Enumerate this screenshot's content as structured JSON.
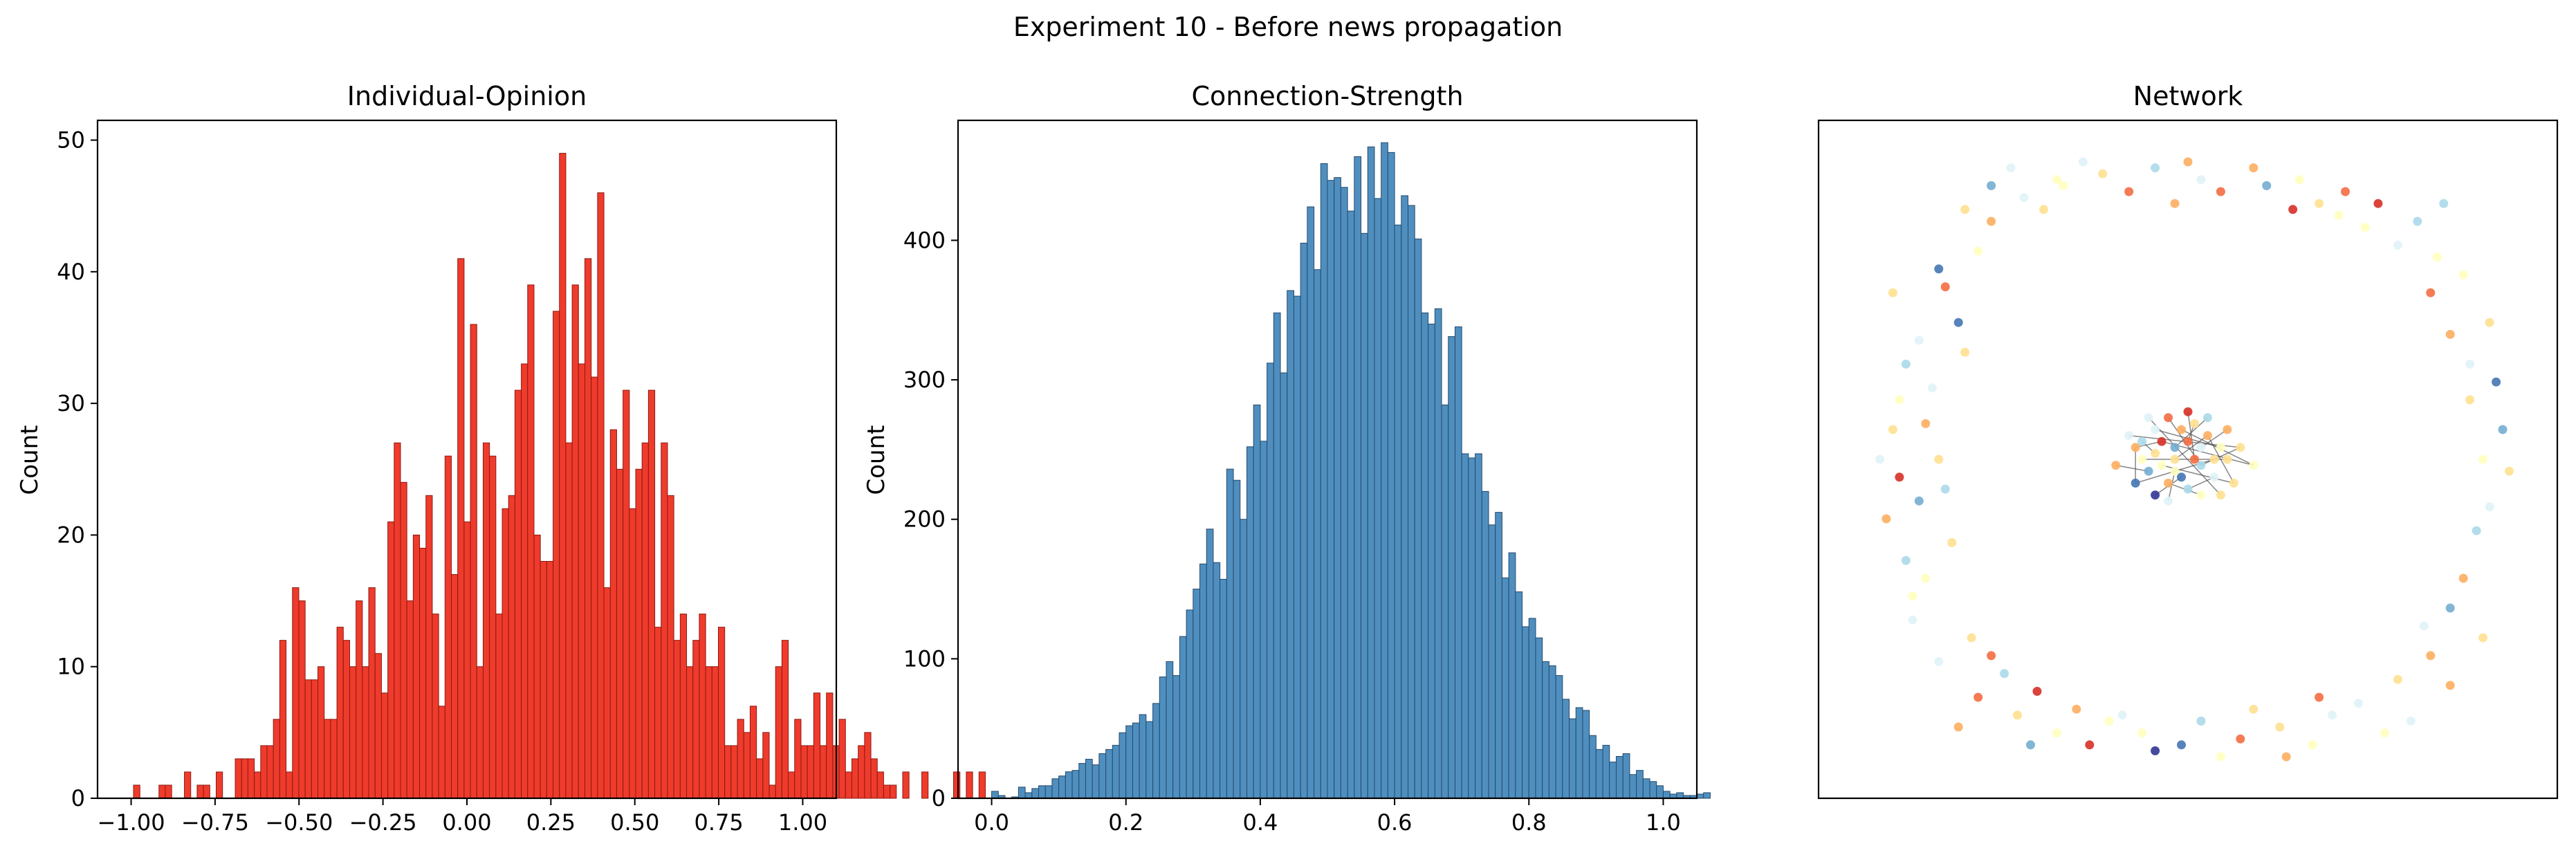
{
  "figure": {
    "title": "Experiment 10 - Before news propagation"
  },
  "colors": {
    "opinion_bar": "#ef3b2c",
    "opinion_edge": "#8b1a12",
    "strength_bar": "#4f8fbf",
    "strength_edge": "#27496a",
    "node_palette": [
      "#d73027",
      "#f46d43",
      "#fdae61",
      "#fee090",
      "#ffffbf",
      "#e0f3f8",
      "#abd9e9",
      "#74add1",
      "#4575b4",
      "#313695"
    ]
  },
  "chart_data": [
    {
      "type": "bar",
      "title": "Individual-Opinion",
      "xlabel": "",
      "ylabel": "Count",
      "xlim": [
        -1.1,
        1.1
      ],
      "ylim": [
        0,
        51.5
      ],
      "xticks": [
        -1.0,
        -0.75,
        -0.5,
        -0.25,
        0.0,
        0.25,
        0.5,
        0.75,
        1.0
      ],
      "xtick_labels": [
        "−1.00",
        "−0.75",
        "−0.50",
        "−0.25",
        "0.00",
        "0.25",
        "0.50",
        "0.75",
        "1.00"
      ],
      "yticks": [
        0,
        10,
        20,
        30,
        40,
        50
      ],
      "ytick_labels": [
        "0",
        "10",
        "20",
        "30",
        "40",
        "50"
      ],
      "bin_start": -0.9928,
      "bin_width": 0.01893,
      "values": [
        1,
        0,
        0,
        0,
        1,
        1,
        0,
        0,
        2,
        0,
        1,
        1,
        0,
        2,
        0,
        0,
        3,
        3,
        3,
        2,
        4,
        4,
        6,
        12,
        2,
        16,
        15,
        9,
        9,
        10,
        6,
        6,
        13,
        12,
        10,
        15,
        10,
        16,
        11,
        8,
        21,
        27,
        24,
        15,
        20,
        19,
        23,
        14,
        7,
        26,
        17,
        41,
        21,
        36,
        10,
        27,
        26,
        14,
        22,
        23,
        31,
        33,
        39,
        20,
        18,
        18,
        37,
        49,
        27,
        39,
        33,
        41,
        32,
        46,
        16,
        28,
        25,
        31,
        22,
        25,
        27,
        31,
        13,
        27,
        23,
        12,
        14,
        10,
        12,
        14,
        10,
        10,
        13,
        4,
        4,
        6,
        5,
        7,
        3,
        5,
        1,
        10,
        12,
        2,
        6,
        4,
        4,
        8,
        4,
        8,
        4,
        6,
        2,
        3,
        4,
        5,
        3,
        2,
        1,
        1,
        0,
        2,
        0,
        0,
        2,
        0,
        0,
        0,
        0,
        2,
        0,
        2,
        0,
        2
      ]
    },
    {
      "type": "bar",
      "title": "Connection-Strength",
      "xlabel": "",
      "ylabel": "Count",
      "xlim": [
        -0.05,
        1.05
      ],
      "ylim": [
        0,
        486
      ],
      "xticks": [
        0.0,
        0.2,
        0.4,
        0.6,
        0.8,
        1.0
      ],
      "xtick_labels": [
        "0.0",
        "0.2",
        "0.4",
        "0.6",
        "0.8",
        "1.0"
      ],
      "yticks": [
        0,
        100,
        200,
        300,
        400
      ],
      "ytick_labels": [
        "0",
        "100",
        "200",
        "300",
        "400"
      ],
      "bin_start": 0.0,
      "bin_width": 0.01,
      "values": [
        5,
        2,
        0,
        1,
        8,
        4,
        7,
        9,
        9,
        14,
        16,
        19,
        20,
        25,
        28,
        24,
        32,
        35,
        38,
        47,
        52,
        54,
        60,
        55,
        68,
        87,
        98,
        88,
        116,
        135,
        150,
        168,
        193,
        169,
        157,
        236,
        228,
        200,
        252,
        282,
        256,
        312,
        348,
        305,
        364,
        360,
        398,
        424,
        379,
        455,
        443,
        445,
        438,
        421,
        460,
        405,
        467,
        430,
        470,
        463,
        411,
        432,
        425,
        401,
        348,
        340,
        351,
        282,
        331,
        338,
        247,
        244,
        247,
        220,
        196,
        205,
        158,
        176,
        148,
        123,
        129,
        115,
        98,
        95,
        88,
        71,
        57,
        65,
        63,
        45,
        35,
        38,
        26,
        30,
        32,
        17,
        20,
        14,
        12,
        9,
        5,
        3,
        4,
        2,
        2,
        3,
        4
      ]
    },
    {
      "type": "scatter",
      "title": "Network",
      "xlabel": "",
      "ylabel": "",
      "grid": false,
      "nodes": [
        [
          0.08,
          0.23,
          5
        ],
        [
          0.12,
          0.5,
          3
        ],
        [
          0.15,
          0.73,
          8
        ],
        [
          0.2,
          0.9,
          2
        ],
        [
          0.3,
          0.97,
          4
        ],
        [
          0.45,
          0.99,
          6
        ],
        [
          0.55,
          0.95,
          1
        ],
        [
          0.7,
          0.93,
          3
        ],
        [
          0.82,
          0.86,
          5
        ],
        [
          0.9,
          0.71,
          2
        ],
        [
          0.95,
          0.5,
          4
        ],
        [
          0.9,
          0.25,
          7
        ],
        [
          0.82,
          0.13,
          3
        ],
        [
          0.72,
          0.07,
          5
        ],
        [
          0.58,
          0.03,
          1
        ],
        [
          0.43,
          0.04,
          4
        ],
        [
          0.33,
          0.08,
          2
        ],
        [
          0.22,
          0.14,
          6
        ],
        [
          0.14,
          0.36,
          3
        ],
        [
          0.11,
          0.62,
          5
        ],
        [
          0.1,
          0.3,
          4
        ],
        [
          0.13,
          0.79,
          1
        ],
        [
          0.25,
          0.94,
          5
        ],
        [
          0.37,
          0.98,
          3
        ],
        [
          0.5,
          1.0,
          2
        ],
        [
          0.62,
          0.96,
          7
        ],
        [
          0.77,
          0.89,
          4
        ],
        [
          0.87,
          0.78,
          1
        ],
        [
          0.93,
          0.6,
          3
        ],
        [
          0.94,
          0.38,
          6
        ],
        [
          0.87,
          0.17,
          2
        ],
        [
          0.76,
          0.09,
          5
        ],
        [
          0.64,
          0.05,
          3
        ],
        [
          0.49,
          0.02,
          8
        ],
        [
          0.38,
          0.06,
          4
        ],
        [
          0.27,
          0.11,
          0
        ],
        [
          0.17,
          0.2,
          3
        ],
        [
          0.09,
          0.43,
          7
        ],
        [
          0.1,
          0.56,
          2
        ],
        [
          0.18,
          0.85,
          4
        ],
        [
          0.06,
          0.47,
          0
        ],
        [
          0.07,
          0.66,
          6
        ],
        [
          0.16,
          0.92,
          3
        ],
        [
          0.34,
          1.0,
          5
        ],
        [
          0.6,
          0.99,
          2
        ],
        [
          0.79,
          0.93,
          0
        ],
        [
          0.92,
          0.81,
          4
        ],
        [
          0.97,
          0.63,
          8
        ],
        [
          0.95,
          0.2,
          3
        ],
        [
          0.84,
          0.06,
          5
        ],
        [
          0.65,
          0.0,
          2
        ],
        [
          0.45,
          0.01,
          9
        ],
        [
          0.3,
          0.04,
          4
        ],
        [
          0.18,
          0.1,
          1
        ],
        [
          0.07,
          0.33,
          6
        ],
        [
          0.05,
          0.55,
          3
        ],
        [
          0.09,
          0.7,
          5
        ],
        [
          0.2,
          0.96,
          7
        ],
        [
          0.41,
          0.95,
          1
        ],
        [
          0.67,
          0.97,
          4
        ],
        [
          0.85,
          0.9,
          6
        ],
        [
          0.96,
          0.73,
          3
        ],
        [
          0.96,
          0.42,
          5
        ],
        [
          0.9,
          0.12,
          2
        ],
        [
          0.69,
          0.02,
          4
        ],
        [
          0.52,
          0.06,
          6
        ],
        [
          0.35,
          0.02,
          0
        ],
        [
          0.24,
          0.07,
          3
        ],
        [
          0.12,
          0.16,
          5
        ],
        [
          0.04,
          0.4,
          2
        ],
        [
          0.06,
          0.6,
          4
        ],
        [
          0.12,
          0.82,
          8
        ],
        [
          0.28,
          0.92,
          3
        ],
        [
          0.52,
          0.97,
          5
        ],
        [
          0.74,
          0.95,
          1
        ],
        [
          0.88,
          0.84,
          4
        ],
        [
          0.98,
          0.55,
          7
        ],
        [
          0.92,
          0.3,
          2
        ],
        [
          0.8,
          0.04,
          4
        ],
        [
          0.6,
          0.08,
          3
        ],
        [
          0.4,
          0.07,
          5
        ],
        [
          0.2,
          0.17,
          1
        ],
        [
          0.08,
          0.27,
          4
        ],
        [
          0.13,
          0.45,
          6
        ],
        [
          0.05,
          0.78,
          3
        ],
        [
          0.23,
          0.99,
          5
        ],
        [
          0.48,
          0.93,
          2
        ],
        [
          0.73,
          0.91,
          4
        ],
        [
          0.89,
          0.93,
          6
        ],
        [
          0.99,
          0.48,
          3
        ],
        [
          0.86,
          0.22,
          5
        ],
        [
          0.7,
          0.1,
          1
        ],
        [
          0.55,
          0.0,
          4
        ],
        [
          0.26,
          0.02,
          7
        ],
        [
          0.15,
          0.05,
          2
        ],
        [
          0.03,
          0.5,
          5
        ],
        [
          0.16,
          0.68,
          3
        ],
        [
          0.31,
          0.96,
          4
        ],
        [
          0.66,
          0.92,
          0
        ],
        [
          0.93,
          0.66,
          5
        ],
        [
          0.42,
          0.52,
          2
        ],
        [
          0.45,
          0.55,
          5
        ],
        [
          0.48,
          0.5,
          3
        ],
        [
          0.5,
          0.53,
          1
        ],
        [
          0.52,
          0.49,
          6
        ],
        [
          0.55,
          0.52,
          4
        ],
        [
          0.47,
          0.46,
          2
        ],
        [
          0.44,
          0.48,
          7
        ],
        [
          0.51,
          0.56,
          3
        ],
        [
          0.54,
          0.47,
          5
        ],
        [
          0.46,
          0.53,
          0
        ],
        [
          0.49,
          0.47,
          8
        ],
        [
          0.53,
          0.54,
          2
        ],
        [
          0.43,
          0.5,
          4
        ],
        [
          0.56,
          0.5,
          3
        ],
        [
          0.5,
          0.45,
          6
        ],
        [
          0.47,
          0.57,
          1
        ],
        [
          0.41,
          0.54,
          5
        ],
        [
          0.58,
          0.52,
          3
        ],
        [
          0.45,
          0.44,
          9
        ],
        [
          0.52,
          0.44,
          4
        ],
        [
          0.39,
          0.49,
          2
        ],
        [
          0.48,
          0.52,
          7
        ],
        [
          0.57,
          0.46,
          3
        ],
        [
          0.44,
          0.57,
          5
        ],
        [
          0.51,
          0.5,
          1
        ],
        [
          0.46,
          0.49,
          4
        ],
        [
          0.53,
          0.57,
          6
        ],
        [
          0.49,
          0.55,
          2
        ],
        [
          0.55,
          0.44,
          3
        ],
        [
          0.42,
          0.46,
          8
        ],
        [
          0.6,
          0.49,
          4
        ],
        [
          0.47,
          0.43,
          5
        ],
        [
          0.5,
          0.58,
          0
        ],
        [
          0.54,
          0.5,
          3
        ],
        [
          0.43,
          0.53,
          6
        ],
        [
          0.56,
          0.55,
          2
        ],
        [
          0.48,
          0.48,
          4
        ],
        [
          0.45,
          0.51,
          3
        ],
        [
          0.52,
          0.52,
          5
        ]
      ],
      "edges": [
        [
          100,
          110
        ],
        [
          101,
          105
        ],
        [
          102,
          112
        ],
        [
          103,
          108
        ],
        [
          104,
          116
        ],
        [
          106,
          120
        ],
        [
          107,
          121
        ],
        [
          109,
          115
        ],
        [
          111,
          119
        ],
        [
          113,
          114
        ],
        [
          117,
          118
        ],
        [
          122,
          127
        ],
        [
          123,
          126
        ],
        [
          124,
          129
        ],
        [
          125,
          133
        ],
        [
          128,
          131
        ],
        [
          130,
          134
        ],
        [
          132,
          137
        ],
        [
          135,
          138
        ],
        [
          136,
          139
        ],
        [
          100,
          130
        ],
        [
          104,
          118
        ],
        [
          110,
          131
        ],
        [
          112,
          123
        ]
      ]
    }
  ]
}
